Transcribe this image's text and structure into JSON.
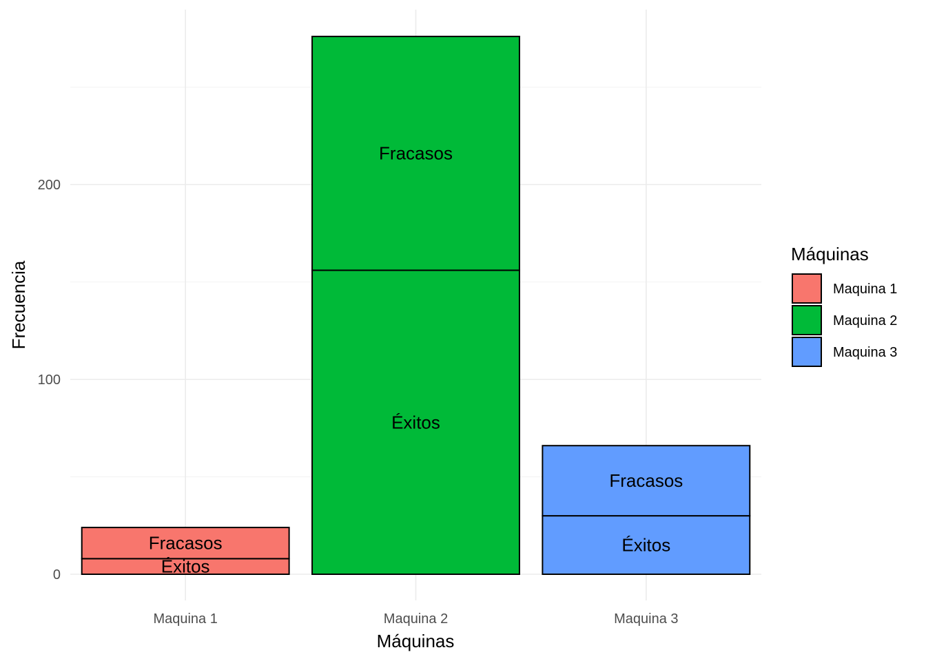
{
  "chart_data": {
    "type": "bar",
    "stacked": true,
    "title": "",
    "xlabel": "Máquinas",
    "ylabel": "Frecuencia",
    "categories": [
      "Maquina 1",
      "Maquina 2",
      "Maquina 3"
    ],
    "colors": [
      "#F8766D",
      "#00BA38",
      "#619CFF"
    ],
    "series": [
      {
        "name": "Éxitos",
        "values": [
          8,
          156,
          30
        ]
      },
      {
        "name": "Fracasos",
        "values": [
          16,
          120,
          36
        ]
      }
    ],
    "y_ticks": [
      0,
      100,
      200
    ],
    "ylim": [
      -12,
      290
    ],
    "grid": true,
    "legend": {
      "title": "Máquinas",
      "position": "right",
      "entries": [
        "Maquina 1",
        "Maquina 2",
        "Maquina 3"
      ]
    }
  }
}
